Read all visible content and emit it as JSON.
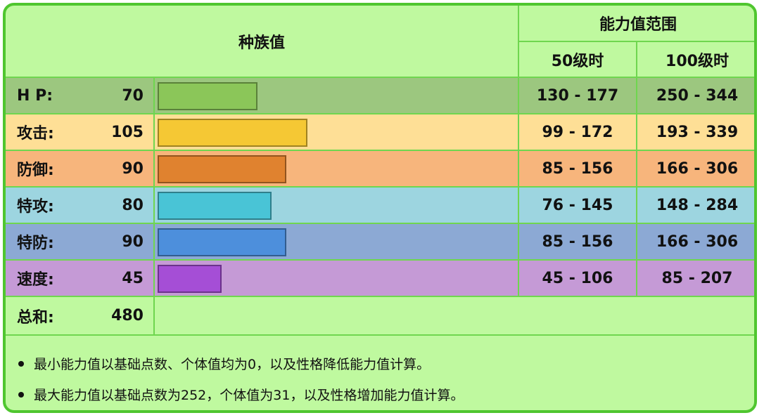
{
  "header": {
    "base_stats": "种族值",
    "stat_range": "能力值范围",
    "lv50": "50级时",
    "lv100": "100级时"
  },
  "rows": [
    {
      "label": "H P:",
      "value": "70",
      "base": 70,
      "lv50": "130 - 177",
      "lv100": "250 - 344",
      "row_color": "#9cc77f",
      "bar_color": "#8bc659"
    },
    {
      "label": "攻击:",
      "value": "105",
      "base": 105,
      "lv50": "99 - 172",
      "lv100": "193 - 339",
      "row_color": "#fedf96",
      "bar_color": "#f5c834"
    },
    {
      "label": "防御:",
      "value": "90",
      "base": 90,
      "lv50": "85 - 156",
      "lv100": "166 - 306",
      "row_color": "#f7b57c",
      "bar_color": "#e0822f"
    },
    {
      "label": "特攻:",
      "value": "80",
      "base": 80,
      "lv50": "76 - 145",
      "lv100": "148 - 284",
      "row_color": "#9dd5e0",
      "bar_color": "#49c4d6"
    },
    {
      "label": "特防:",
      "value": "90",
      "base": 90,
      "lv50": "85 - 156",
      "lv100": "166 - 306",
      "row_color": "#8ca9d4",
      "bar_color": "#4d8fdc"
    },
    {
      "label": "速度:",
      "value": "45",
      "base": 45,
      "lv50": "45 - 106",
      "lv100": "85 - 207",
      "row_color": "#c59ad6",
      "bar_color": "#a54ed6"
    }
  ],
  "total": {
    "label": "总和:",
    "value": "480"
  },
  "notes": [
    "最小能力值以基础点数、个体值均为0，以及性格降低能力值计算。",
    "最大能力值以基础点数为252，个体值为31，以及性格增加能力值计算。"
  ]
}
